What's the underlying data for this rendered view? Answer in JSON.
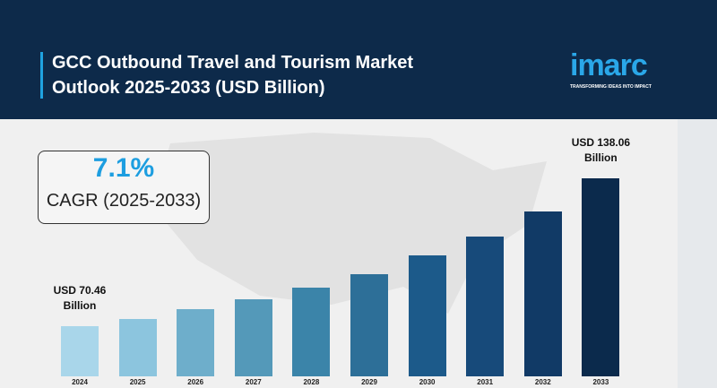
{
  "header": {
    "logo": "imarc",
    "tagline": "TRANSFORMING IDEAS INTO IMPACT"
  },
  "chart_data": {
    "type": "bar",
    "title": "GCC Outbound Travel and Tourism Market Outlook 2025-2033 (USD Billion)",
    "cagr": {
      "value": "7.1%",
      "label": "CAGR (2025-2033)"
    },
    "categories": [
      "2024",
      "2025",
      "2026",
      "2027",
      "2028",
      "2029",
      "2030",
      "2031",
      "2032",
      "2033"
    ],
    "values": [
      70.46,
      73.7,
      78.2,
      82.7,
      88.1,
      94.2,
      102.8,
      111.4,
      122.9,
      138.06
    ],
    "value_labels": [
      "USD 70.46 Billion",
      null,
      null,
      null,
      null,
      null,
      null,
      null,
      null,
      "USD 138.06 Billion"
    ],
    "colors": [
      "#a9d6ea",
      "#8cc5de",
      "#6eaecb",
      "#5499b9",
      "#3b84a9",
      "#2d6f98",
      "#1c5a8a",
      "#174a7a",
      "#113a66",
      "#0b2a4c"
    ],
    "ylim": [
      47.5,
      140
    ]
  }
}
